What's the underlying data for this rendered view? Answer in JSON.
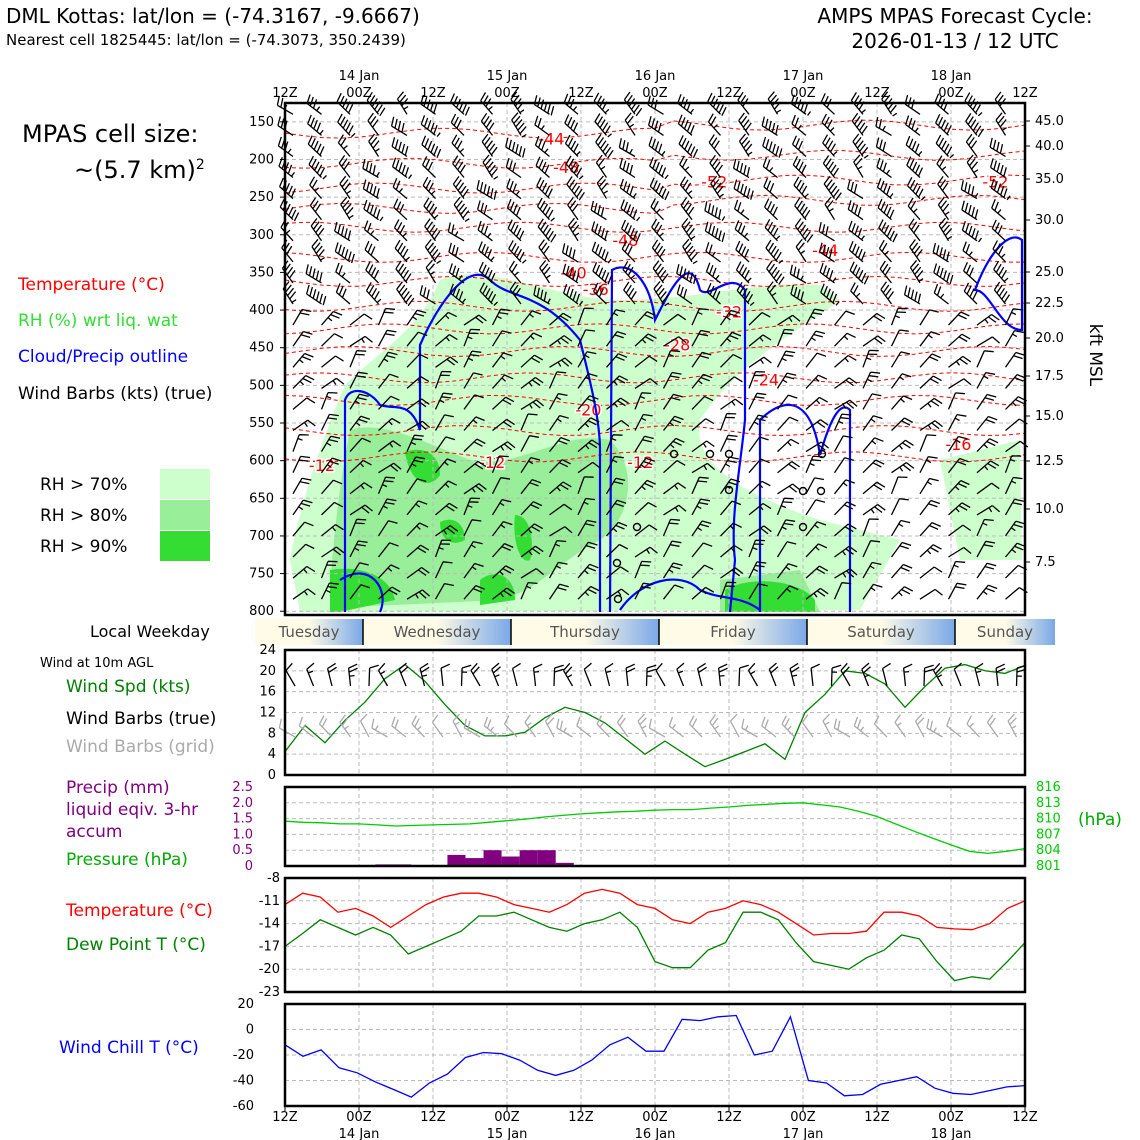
{
  "header": {
    "site_line": "DML Kottas: lat/lon = (-74.3167, -9.6667)",
    "cell_line": "Nearest cell 1825445: lat/lon = (-74.3073, 350.2439)",
    "model_line": "AMPS MPAS Forecast Cycle:",
    "cycle_line": "2026-01-13 / 12 UTC"
  },
  "cell_size": {
    "line1": "MPAS cell size:",
    "line2": "~(5.7 km)",
    "exp": "2"
  },
  "legend": {
    "temperature": "Temperature (°C)",
    "rh": "RH (%) wrt liq. wat",
    "cloud": "Cloud/Precip outline",
    "barbs": "Wind Barbs (kts) (true)",
    "rh70": "RH > 70%",
    "rh80": "RH > 80%",
    "rh90": "RH > 90%"
  },
  "colors": {
    "temp": "#ff0000",
    "rh70": "#ccffcc",
    "rh80": "#99ee99",
    "rh90": "#33dd33",
    "cloud": "#0000ff",
    "wind_speed": "#008000",
    "grid_barb": "#aaaaaa",
    "precip": "#800080",
    "pressure": "#00cc00",
    "dewpoint": "#008000",
    "windchill": "#0000ff"
  },
  "time_axis": {
    "tick_labels": [
      "12Z",
      "00Z",
      "12Z",
      "00Z",
      "12Z",
      "00Z",
      "12Z",
      "00Z",
      "12Z",
      "00Z",
      "12Z"
    ],
    "date_labels": [
      "14 Jan",
      "15 Jan",
      "16 Jan",
      "17 Jan",
      "18 Jan"
    ]
  },
  "weekday": {
    "label": "Local Weekday",
    "days": [
      "Tuesday",
      "Wednesday",
      "Thursday",
      "Friday",
      "Saturday",
      "Sunday"
    ]
  },
  "chart_data": [
    {
      "type": "heatmap",
      "description_ref": "time-height cross section",
      "x_range": [
        "2026-01-13 12Z",
        "2026-01-18 12Z"
      ],
      "ylabel_right": "kft MSL",
      "y_left_ticks": [
        150,
        200,
        250,
        300,
        350,
        400,
        450,
        500,
        550,
        600,
        650,
        700,
        750,
        800
      ],
      "y_right_ticks": [
        "45.0",
        "40.0",
        "35.0",
        "30.0",
        "25.0",
        "22.5",
        "20.0",
        "17.5",
        "15.0",
        "12.5",
        "10.0",
        "7.5"
      ],
      "temperature_contour_labels": [
        {
          "label": "-44",
          "t": 0.36,
          "p": 172
        },
        {
          "label": "-48",
          "t": 0.38,
          "p": 210
        },
        {
          "label": "-52",
          "t": 0.58,
          "p": 229
        },
        {
          "label": "-52",
          "t": 0.96,
          "p": 229
        },
        {
          "label": "-48",
          "t": 0.46,
          "p": 307
        },
        {
          "label": "-44",
          "t": 0.73,
          "p": 320
        },
        {
          "label": "-40",
          "t": 0.39,
          "p": 350
        },
        {
          "label": "-36",
          "t": 0.42,
          "p": 372
        },
        {
          "label": "-32",
          "t": 0.6,
          "p": 402
        },
        {
          "label": "-28",
          "t": 0.53,
          "p": 446
        },
        {
          "label": "-24",
          "t": 0.65,
          "p": 492
        },
        {
          "label": "-20",
          "t": 0.41,
          "p": 532
        },
        {
          "label": "-16",
          "t": 0.91,
          "p": 578
        },
        {
          "label": "-12",
          "t": 0.05,
          "p": 606
        },
        {
          "label": "-12",
          "t": 0.28,
          "p": 602
        },
        {
          "label": "-12",
          "t": 0.48,
          "p": 602
        }
      ],
      "legend": [
        "Temperature (°C)",
        "RH (%) wrt liq. wat",
        "Cloud/Precip outline",
        "Wind Barbs (kts) (true)"
      ]
    },
    {
      "type": "line",
      "title": "Wind at 10m AGL",
      "ylim": [
        0,
        24
      ],
      "y_ticks": [
        0,
        4,
        8,
        12,
        16,
        20,
        24
      ],
      "series": [
        {
          "name": "Wind Spd (kts)",
          "values": [
            4.5,
            9.5,
            6.2,
            10.5,
            14,
            18.5,
            21.2,
            18,
            13.5,
            9.5,
            7.5,
            7.5,
            8.2,
            11,
            13,
            12,
            10,
            7,
            4,
            6.5,
            4,
            1.6,
            3,
            4.5,
            6,
            3,
            12,
            15.5,
            20,
            19.5,
            17.5,
            13,
            17,
            20.5,
            21.2,
            20,
            19.5,
            21
          ]
        }
      ],
      "legend": [
        "Wind Spd (kts)",
        "Wind Barbs (true)",
        "Wind Barbs (grid)"
      ]
    },
    {
      "type": "bar",
      "ylabel_left": "Precip (mm) liquid eqiv. 3-hr accum",
      "ylabel_right": "(hPa)",
      "ylim": [
        0,
        2.5
      ],
      "y_left_ticks": [
        "0",
        "0.5",
        "1.0",
        "1.5",
        "2.0",
        "2.5"
      ],
      "y_right_ticks": [
        "801",
        "804",
        "807",
        "810",
        "813",
        "816"
      ],
      "series": [
        {
          "name": "Precip (mm)",
          "values": [
            0,
            0,
            0,
            0,
            0,
            0.05,
            0.05,
            0,
            0,
            0.35,
            0.25,
            0.5,
            0.3,
            0.5,
            0.5,
            0.1,
            0,
            0,
            0,
            0,
            0,
            0,
            0,
            0,
            0,
            0,
            0,
            0,
            0,
            0,
            0,
            0,
            0,
            0,
            0,
            0,
            0,
            0,
            0,
            0,
            0
          ]
        },
        {
          "name": "Pressure (hPa)",
          "values": [
            809.5,
            809.3,
            809.2,
            809,
            809,
            808.8,
            808.6,
            808.7,
            808.8,
            808.9,
            809,
            809.3,
            809.6,
            809.9,
            810.3,
            810.6,
            810.9,
            811.1,
            811.3,
            811.4,
            811.6,
            811.7,
            811.7,
            812,
            812.2,
            812.5,
            812.7,
            812.9,
            813,
            812.6,
            812.2,
            811.4,
            810.4,
            809,
            807.6,
            806.3,
            805,
            803.8,
            803.4,
            803.8,
            804.3
          ]
        }
      ],
      "legend": [
        "Precip (mm) liquid eqiv. 3-hr accum",
        "Pressure (hPa)"
      ]
    },
    {
      "type": "line",
      "ylim": [
        -23,
        -8
      ],
      "y_ticks": [
        -8,
        -11,
        -14,
        -17,
        -20,
        -23
      ],
      "series": [
        {
          "name": "Temperature (°C)",
          "values": [
            -11.5,
            -10,
            -10.5,
            -12.5,
            -12,
            -13,
            -14.5,
            -13,
            -11.5,
            -10.5,
            -10,
            -10,
            -10.5,
            -11.5,
            -12,
            -12.5,
            -11.5,
            -10,
            -9.5,
            -10,
            -11.5,
            -12,
            -13.5,
            -14,
            -12.5,
            -12,
            -11,
            -11.5,
            -12.5,
            -14,
            -15.5,
            -15.3,
            -15.3,
            -15,
            -12.5,
            -12.5,
            -13,
            -14.5,
            -14.7,
            -14.8,
            -14,
            -12,
            -11
          ]
        },
        {
          "name": "Dew Point T (°C)",
          "values": [
            -17,
            -15.3,
            -13.5,
            -14.5,
            -15.5,
            -14.5,
            -15.5,
            -18,
            -17,
            -16,
            -15,
            -13,
            -13,
            -12.5,
            -13.5,
            -14.5,
            -15,
            -14,
            -13.5,
            -12.5,
            -14.5,
            -19,
            -19.8,
            -19.8,
            -17.5,
            -16.5,
            -12.5,
            -12.5,
            -13.5,
            -16.5,
            -19,
            -19.5,
            -20,
            -18.5,
            -17.5,
            -15.5,
            -16,
            -19,
            -21.5,
            -21,
            -21.3,
            -19,
            -16.5
          ]
        }
      ],
      "legend": [
        "Temperature (°C)",
        "Dew Point T (°C)"
      ]
    },
    {
      "type": "line",
      "ylim": [
        -60,
        20
      ],
      "y_ticks": [
        -60,
        -40,
        -20,
        0,
        20
      ],
      "series": [
        {
          "name": "Wind Chill T (°C)",
          "values": [
            -12,
            -21,
            -16,
            -30,
            -34,
            -41,
            -47,
            -53,
            -42,
            -35,
            -22,
            -18,
            -19,
            -24,
            -32,
            -36,
            -32,
            -24,
            -12,
            -6,
            -17,
            -17,
            8,
            7,
            10,
            11,
            -20,
            -17,
            10,
            -40,
            -42,
            -52,
            -51,
            -43,
            -40,
            -37,
            -46,
            -50,
            -51,
            -48,
            -45,
            -44
          ]
        }
      ],
      "legend": [
        "Wind Chill T (°C)"
      ]
    }
  ]
}
